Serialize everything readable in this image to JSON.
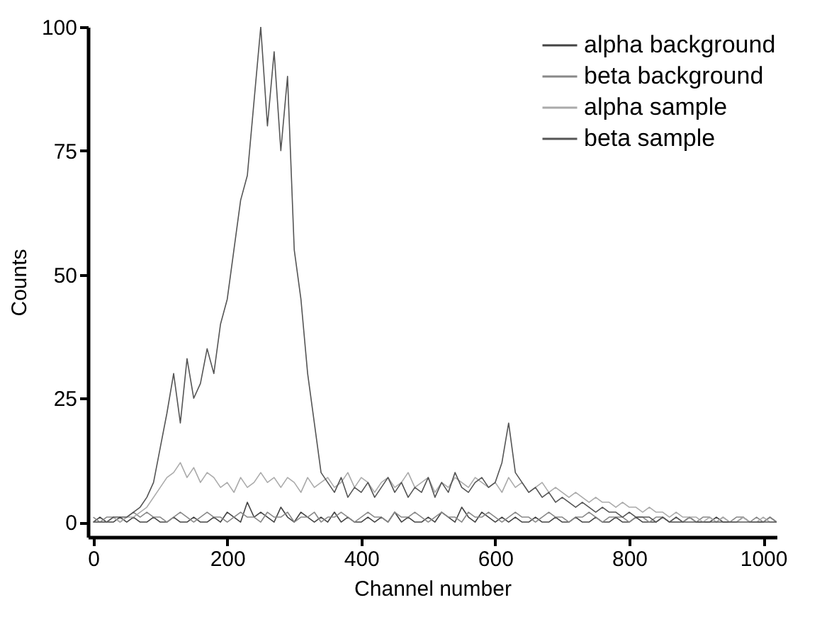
{
  "chart_data": {
    "type": "line",
    "xlabel": "Channel number",
    "ylabel": "Counts",
    "xlim": [
      -8,
      1020
    ],
    "ylim": [
      -3,
      100
    ],
    "xticks": [
      0,
      200,
      400,
      600,
      800,
      1000
    ],
    "yticks": [
      0,
      25,
      50,
      75,
      100
    ],
    "grid": false,
    "legend": "top right",
    "marker": "none",
    "line_style": "solid",
    "x": [
      0,
      10,
      20,
      30,
      40,
      50,
      60,
      70,
      80,
      90,
      100,
      110,
      120,
      130,
      140,
      150,
      160,
      170,
      180,
      190,
      200,
      210,
      220,
      230,
      240,
      250,
      260,
      270,
      280,
      290,
      300,
      310,
      320,
      330,
      340,
      350,
      360,
      370,
      380,
      390,
      400,
      410,
      420,
      430,
      440,
      450,
      460,
      470,
      480,
      490,
      500,
      510,
      520,
      530,
      540,
      550,
      560,
      570,
      580,
      590,
      600,
      610,
      620,
      630,
      640,
      650,
      660,
      670,
      680,
      690,
      700,
      710,
      720,
      730,
      740,
      750,
      760,
      770,
      780,
      790,
      800,
      810,
      820,
      830,
      840,
      850,
      860,
      870,
      880,
      890,
      900,
      910,
      920,
      930,
      940,
      950,
      960,
      970,
      980,
      990,
      1000,
      1010,
      1020
    ],
    "series": [
      {
        "name": "alpha background",
        "color": "#444444",
        "values": [
          0,
          1,
          0,
          0,
          1,
          0,
          1,
          0,
          0,
          1,
          0,
          0,
          1,
          0,
          0,
          1,
          0,
          0,
          1,
          0,
          2,
          1,
          0,
          4,
          1,
          2,
          1,
          0,
          3,
          1,
          0,
          2,
          1,
          0,
          1,
          0,
          2,
          0,
          1,
          0,
          0,
          1,
          0,
          1,
          0,
          2,
          0,
          1,
          0,
          0,
          1,
          0,
          2,
          1,
          0,
          3,
          1,
          0,
          2,
          1,
          0,
          1,
          0,
          1,
          0,
          0,
          1,
          0,
          0,
          1,
          0,
          0,
          1,
          0,
          0,
          1,
          0,
          0,
          1,
          0,
          0,
          1,
          0,
          0,
          0,
          1,
          0,
          0,
          0,
          1,
          0,
          0,
          0,
          1,
          0,
          0,
          0,
          1,
          0,
          0,
          0,
          1,
          0
        ]
      },
      {
        "name": "beta background",
        "color": "#888888",
        "values": [
          1,
          0,
          1,
          1,
          0,
          1,
          2,
          1,
          2,
          1,
          1,
          0,
          1,
          2,
          1,
          0,
          1,
          2,
          1,
          1,
          0,
          1,
          2,
          1,
          1,
          0,
          2,
          1,
          1,
          2,
          0,
          1,
          1,
          2,
          0,
          1,
          1,
          2,
          1,
          0,
          1,
          2,
          1,
          1,
          0,
          2,
          1,
          1,
          2,
          1,
          0,
          1,
          2,
          1,
          1,
          0,
          2,
          1,
          1,
          2,
          1,
          0,
          1,
          2,
          1,
          1,
          0,
          1,
          2,
          1,
          1,
          0,
          1,
          1,
          2,
          1,
          0,
          1,
          1,
          1,
          0,
          1,
          1,
          0,
          1,
          1,
          0,
          1,
          0,
          1,
          0,
          1,
          1,
          0,
          1,
          0,
          1,
          1,
          0,
          1,
          0,
          1,
          0
        ]
      },
      {
        "name": "alpha sample",
        "color": "#aaaaaa",
        "values": [
          0,
          0,
          0,
          1,
          0,
          1,
          1,
          2,
          3,
          5,
          7,
          9,
          10,
          12,
          9,
          11,
          8,
          10,
          9,
          7,
          8,
          6,
          9,
          7,
          8,
          10,
          8,
          9,
          7,
          9,
          8,
          6,
          9,
          7,
          8,
          9,
          7,
          8,
          10,
          7,
          9,
          8,
          6,
          8,
          9,
          7,
          8,
          10,
          7,
          8,
          9,
          6,
          8,
          7,
          9,
          8,
          7,
          9,
          8,
          7,
          8,
          6,
          9,
          7,
          8,
          6,
          7,
          8,
          6,
          7,
          6,
          5,
          6,
          5,
          4,
          5,
          4,
          4,
          3,
          4,
          3,
          3,
          2,
          3,
          2,
          2,
          1,
          2,
          1,
          1,
          1,
          0,
          1,
          0,
          1,
          0,
          0,
          1,
          0,
          0,
          1,
          0,
          0
        ]
      },
      {
        "name": "beta sample",
        "color": "#555555",
        "values": [
          0,
          0,
          0,
          1,
          1,
          1,
          2,
          3,
          5,
          8,
          15,
          22,
          30,
          20,
          33,
          25,
          28,
          35,
          30,
          40,
          45,
          55,
          65,
          70,
          85,
          100,
          80,
          95,
          75,
          90,
          55,
          45,
          30,
          20,
          10,
          8,
          6,
          9,
          5,
          7,
          6,
          8,
          5,
          7,
          9,
          6,
          8,
          5,
          7,
          6,
          9,
          5,
          8,
          6,
          10,
          7,
          6,
          8,
          9,
          7,
          8,
          12,
          20,
          10,
          8,
          6,
          7,
          5,
          6,
          4,
          5,
          4,
          3,
          4,
          3,
          2,
          3,
          2,
          2,
          1,
          2,
          1,
          1,
          1,
          0,
          1,
          0,
          1,
          0,
          0,
          0,
          0,
          0,
          0,
          0,
          0,
          0,
          0,
          0,
          0,
          0,
          0,
          0
        ]
      }
    ]
  }
}
